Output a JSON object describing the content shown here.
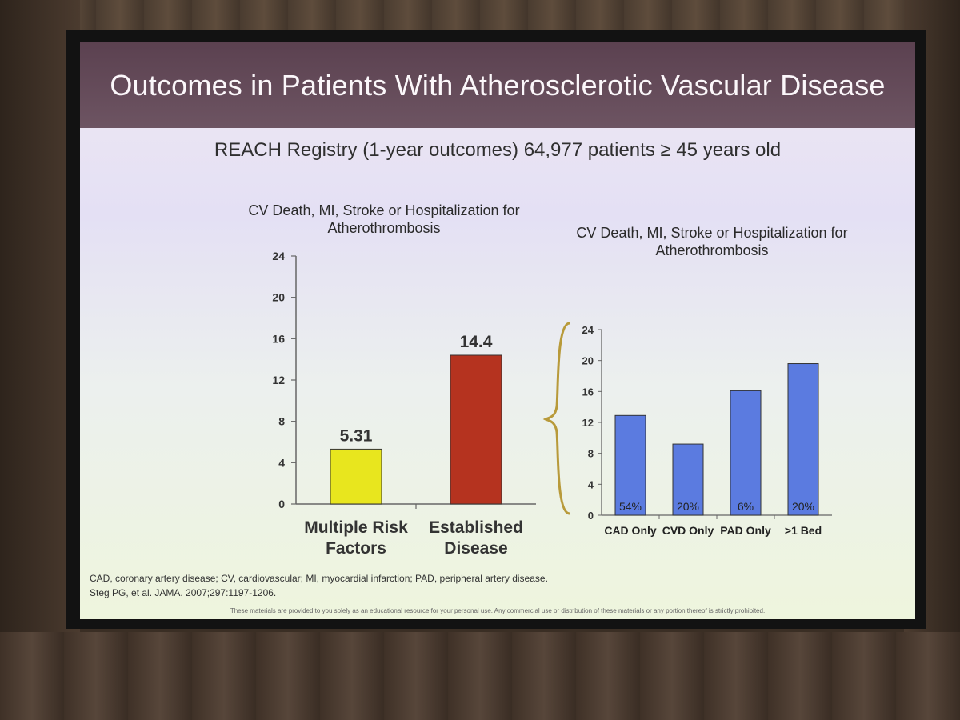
{
  "slide": {
    "title": "Outcomes in Patients With Atherosclerotic Vascular Disease",
    "subtitle": "REACH Registry (1-year outcomes)  64,977 patients ≥ 45 years old",
    "footnotes": [
      "CAD, coronary artery disease; CV, cardiovascular; MI, myocardial infarction; PAD, peripheral artery disease.",
      "Steg PG, et al. JAMA. 2007;297:1197-1206."
    ],
    "disclaimer": "These materials are provided to you solely as an educational resource for your personal use. Any commercial use or distribution of these materials or any portion thereof is strictly prohibited."
  },
  "chart_data": [
    {
      "type": "bar",
      "title": "CV Death, MI, Stroke or Hospitalization for Atherothrombosis",
      "categories": [
        "Multiple Risk Factors",
        "Established Disease"
      ],
      "values": [
        5.31,
        14.4
      ],
      "data_labels": [
        "5.31",
        "14.4"
      ],
      "ylim": [
        0,
        24
      ],
      "yticks": [
        0,
        4,
        8,
        12,
        16,
        20,
        24
      ],
      "colors": [
        "#e8e61e",
        "#b5331f"
      ],
      "grid": false
    },
    {
      "type": "bar",
      "title": "CV Death, MI, Stroke or Hospitalization for Atherothrombosis",
      "categories": [
        "CAD Only",
        "CVD Only",
        "PAD Only",
        ">1 Bed"
      ],
      "values": [
        12.9,
        9.2,
        16.1,
        19.6
      ],
      "data_labels": [
        "54%",
        "20%",
        "6%",
        "20%"
      ],
      "ylim": [
        0,
        24
      ],
      "yticks": [
        0,
        4,
        8,
        12,
        16,
        20,
        24
      ],
      "colors": [
        "#5b7be0"
      ],
      "grid": false
    }
  ]
}
